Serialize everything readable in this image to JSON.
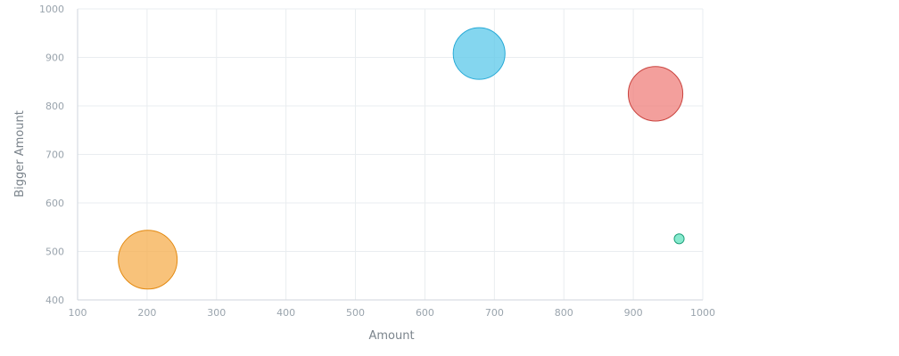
{
  "chart_data": {
    "type": "scatter",
    "variant": "bubble",
    "title": "",
    "xlabel": "Amount",
    "ylabel": "Bigger Amount",
    "xlim": [
      100,
      1000
    ],
    "ylim": [
      400,
      1000
    ],
    "x_ticks": [
      100,
      200,
      300,
      400,
      500,
      600,
      700,
      800,
      900,
      1000
    ],
    "y_ticks": [
      400,
      500,
      600,
      700,
      800,
      900,
      1000
    ],
    "grid": true,
    "legend": "none",
    "points": [
      {
        "x": 678,
        "y": 908,
        "size": 55,
        "fill": "#5bc8ea",
        "stroke": "#26a9d6"
      },
      {
        "x": 932,
        "y": 825,
        "size": 61,
        "fill": "#ef7f7b",
        "stroke": "#c9433e"
      },
      {
        "x": 966,
        "y": 526,
        "size": 2,
        "fill": "#5fe3bd",
        "stroke": "#1f9f7a"
      },
      {
        "x": 201,
        "y": 483,
        "size": 71,
        "fill": "#f6ae4e",
        "stroke": "#e38a12"
      }
    ]
  }
}
